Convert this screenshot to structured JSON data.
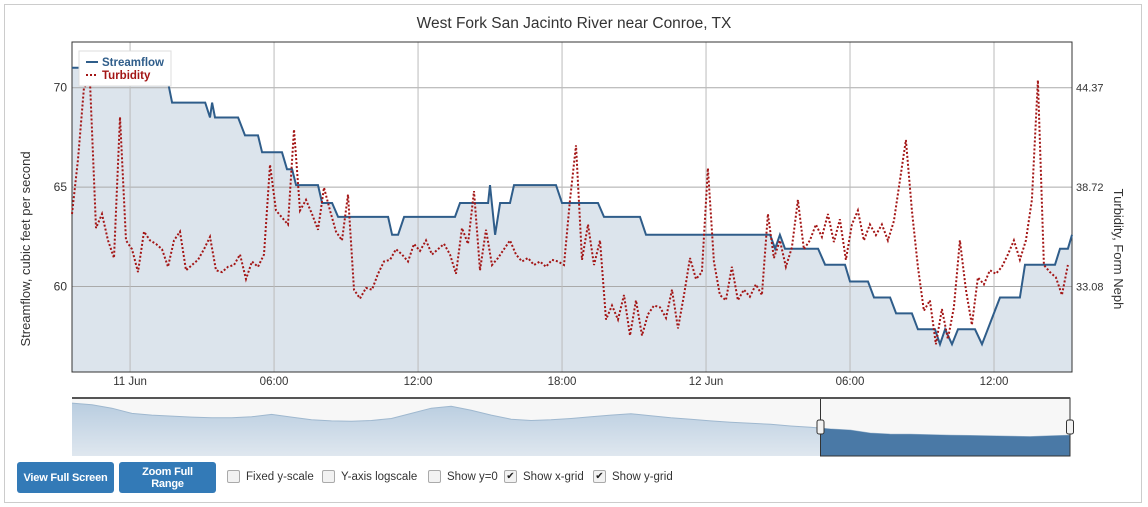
{
  "chart_data": {
    "type": "line",
    "title": "West Fork San Jacinto River near Conroe, TX",
    "ylabel": "Streamflow, cubic feet per second",
    "y2label": "Turbidity, Form Neph",
    "x_units": "hours since 11 Jun 00:00",
    "xlim": [
      -2.42,
      39.25
    ],
    "ylim": [
      55.7,
      72.3
    ],
    "y_ticks": [
      60,
      65,
      70
    ],
    "y2_ticks": [
      "33.08",
      "38.72",
      "44.37"
    ],
    "y2_map": {
      "y_at_60": 33.08,
      "y_at_70": 44.37
    },
    "x_ticks": [
      {
        "value": 0,
        "label": "11 Jun"
      },
      {
        "value": 6,
        "label": "06:00"
      },
      {
        "value": 12,
        "label": "12:00"
      },
      {
        "value": 18,
        "label": "18:00"
      },
      {
        "value": 24,
        "label": "12 Jun"
      },
      {
        "value": 30,
        "label": "06:00"
      },
      {
        "value": 36,
        "label": "12:00"
      }
    ],
    "x_grid": true,
    "y_grid": true,
    "legend_position": "top-left",
    "series": [
      {
        "name": "Streamflow",
        "color": "#2f5d8a",
        "style": "solid",
        "axis": "left",
        "x": [
          -2.42,
          1.46,
          1.75,
          3.13,
          3.33,
          3.42,
          3.54,
          4.5,
          4.79,
          5.33,
          5.5,
          6.33,
          6.54,
          6.75,
          6.92,
          7.83,
          8,
          8.42,
          8.67,
          10.75,
          10.92,
          11.17,
          11.42,
          13.54,
          13.75,
          14.92,
          15,
          15.21,
          15.42,
          15.83,
          16,
          17.75,
          18,
          19.5,
          19.75,
          21.25,
          21.5,
          26.67,
          26.88,
          27.08,
          27.29,
          28.67,
          28.96,
          29.79,
          30,
          30.75,
          31,
          31.67,
          31.92,
          32.58,
          32.83,
          33.54,
          33.75,
          33.96,
          34.25,
          34.5,
          35.21,
          35.5,
          36.25,
          37.08,
          37.29,
          38.54,
          38.75,
          39.08,
          39.25
        ],
        "values": [
          71.0,
          71.0,
          69.25,
          69.25,
          68.5,
          69.25,
          68.5,
          68.5,
          67.6,
          67.6,
          66.75,
          66.75,
          65.9,
          65.9,
          65.1,
          65.1,
          64.2,
          64.2,
          63.5,
          63.5,
          62.6,
          62.6,
          63.5,
          63.5,
          64.2,
          64.2,
          65.1,
          62.6,
          64.2,
          64.2,
          65.1,
          65.1,
          64.2,
          64.2,
          63.5,
          63.5,
          62.6,
          62.6,
          61.9,
          62.6,
          61.9,
          61.9,
          61.1,
          61.1,
          60.25,
          60.25,
          59.45,
          59.45,
          58.65,
          58.65,
          57.85,
          57.85,
          57.1,
          57.85,
          57.1,
          57.85,
          57.85,
          57.1,
          59.45,
          59.45,
          61.1,
          61.1,
          61.9,
          61.9,
          62.6
        ]
      },
      {
        "name": "Turbidity",
        "color": "#a31515",
        "style": "dotted",
        "axis": "right",
        "x_start": -2.42,
        "x_interval": 0.25,
        "values": [
          37.2,
          40.3,
          44.4,
          44.7,
          36.4,
          37.2,
          35.7,
          34.7,
          42.7,
          35.7,
          35.2,
          33.9,
          36.2,
          35.7,
          35.5,
          35.2,
          34.2,
          35.7,
          36.2,
          34.0,
          34.3,
          34.6,
          35.2,
          35.9,
          34.0,
          33.9,
          34.2,
          34.3,
          34.9,
          33.5,
          34.5,
          34.2,
          34.9,
          40.0,
          37.4,
          37.0,
          36.6,
          42.0,
          37.4,
          38.0,
          37.2,
          36.3,
          38.7,
          37.4,
          36.2,
          35.7,
          38.3,
          32.9,
          32.4,
          33.0,
          32.9,
          33.8,
          34.5,
          34.6,
          35.2,
          34.9,
          34.5,
          35.5,
          35.1,
          35.7,
          34.9,
          35.2,
          35.5,
          34.9,
          33.8,
          36.4,
          35.5,
          38.5,
          34.0,
          36.3,
          34.3,
          34.7,
          35.2,
          35.7,
          34.9,
          34.5,
          34.7,
          34.3,
          34.5,
          34.2,
          34.6,
          34.5,
          34.3,
          38.0,
          41.1,
          34.6,
          36.6,
          34.3,
          35.7,
          31.2,
          32.0,
          31.2,
          32.6,
          30.3,
          32.3,
          30.3,
          31.5,
          32.0,
          31.9,
          31.3,
          32.9,
          30.7,
          32.6,
          34.7,
          33.5,
          33.9,
          39.8,
          34.5,
          32.6,
          32.3,
          34.2,
          32.3,
          32.9,
          32.5,
          33.2,
          32.6,
          37.2,
          34.7,
          35.7,
          34.2,
          35.3,
          38.0,
          35.2,
          35.7,
          36.6,
          35.9,
          37.2,
          35.6,
          36.9,
          34.6,
          36.6,
          37.4,
          35.7,
          36.6,
          36.0,
          36.6,
          35.7,
          36.8,
          39.1,
          41.4,
          37.4,
          34.2,
          31.7,
          32.3,
          29.8,
          31.8,
          30.1,
          31.9,
          35.7,
          32.9,
          30.9,
          33.6,
          33.2,
          34.0,
          33.8,
          34.2,
          34.9,
          35.7,
          34.6,
          35.7,
          38.0,
          44.8,
          34.3,
          33.9,
          33.6,
          32.6,
          34.3
        ]
      }
    ],
    "navigator": {
      "values": [
        70.5,
        70,
        69,
        67.5,
        67,
        66.7,
        66.4,
        66.2,
        66.2,
        66.5,
        67.2,
        66.4,
        65.6,
        65.3,
        65.2,
        65.4,
        66,
        67.5,
        69,
        69.6,
        68.4,
        67,
        65.8,
        65.4,
        65.6,
        66,
        66.5,
        67,
        67.4,
        66.8,
        66.2,
        65.8,
        65.3,
        64.9,
        64.6,
        64.3,
        63.8,
        63.4,
        62.9,
        62.6,
        61.7,
        61.4,
        61.4,
        61.2,
        61.1,
        61,
        60.9,
        60.8,
        60.7,
        60.9,
        61.1
      ],
      "selection": [
        0.75,
        1.0
      ]
    }
  },
  "controls": {
    "view_full_screen": "View Full Screen",
    "zoom_full_range": "Zoom Full Range",
    "checkboxes": [
      {
        "label": "Fixed y-scale",
        "checked": false
      },
      {
        "label": "Y-axis logscale",
        "checked": false
      },
      {
        "label": "Show y=0",
        "checked": false
      },
      {
        "label": "Show x-grid",
        "checked": true
      },
      {
        "label": "Show y-grid",
        "checked": true
      }
    ]
  }
}
